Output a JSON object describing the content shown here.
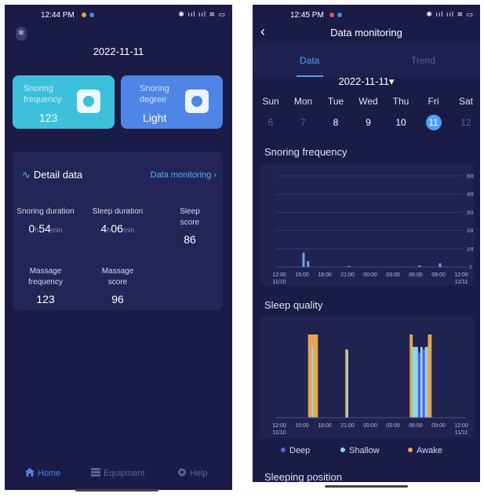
{
  "left_screen": {
    "status_bar": {
      "time": "12:44 PM",
      "icons": "✱ ııl ııl ≋ ▭"
    },
    "date": "2022-11-11",
    "cards": [
      {
        "label": "Snoring frequency",
        "value": "123",
        "color": "#3cc0dc"
      },
      {
        "label": "Snoring degree",
        "value": "Light",
        "color": "#4f85e6"
      }
    ],
    "detail": {
      "title": "Detail data",
      "link": "Data monitoring ›",
      "snoring_duration": {
        "label": "Snoring duration",
        "h": "0",
        "h_unit": "h",
        "m": "54",
        "m_unit": "min"
      },
      "sleep_duration": {
        "label": "Sleep duration",
        "h": "4",
        "h_unit": "h",
        "m": "06",
        "m_unit": "min"
      },
      "sleep_score": {
        "label": "Sleep score",
        "value": "86"
      },
      "massage_frequency": {
        "label": "Massage frequency",
        "value": "123"
      },
      "massage_score": {
        "label": "Massage score",
        "value": "96"
      }
    },
    "tab_bar": {
      "home": "Home",
      "equipment": "Equipment",
      "help": "Help",
      "active_color": "#4f85e6"
    }
  },
  "right_screen": {
    "status_bar": {
      "time": "12:45 PM",
      "icons": "✱ ııl ııl ≋ ▭"
    },
    "nav_title": "Data monitoring",
    "tabs": {
      "data": "Data",
      "trend": "Trend"
    },
    "calendar": {
      "date": "2022-11-11▾",
      "days": [
        {
          "name": "Sun",
          "num": "6",
          "dim": true
        },
        {
          "name": "Mon",
          "num": "7",
          "dim": true
        },
        {
          "name": "Tue",
          "num": "8",
          "dim": false
        },
        {
          "name": "Wed",
          "num": "9",
          "dim": false
        },
        {
          "name": "Thu",
          "num": "10",
          "dim": false
        },
        {
          "name": "Fri",
          "num": "11",
          "dim": false,
          "selected": true
        },
        {
          "name": "Sat",
          "num": "12",
          "dim": true
        }
      ]
    },
    "sections": {
      "snoring_frequency": "Snoring frequency",
      "sleep_quality": "Sleep quality",
      "sleeping_position": "Sleeping position"
    },
    "legend": [
      {
        "label": "Deep",
        "color": "#5b5fe0"
      },
      {
        "label": "Shallow",
        "color": "#8fd8e8"
      },
      {
        "label": "Awake",
        "color": "#e8a452"
      }
    ]
  },
  "chart_data": [
    {
      "type": "bar",
      "title": "Snoring frequency",
      "ylim": [
        0,
        500
      ],
      "yticks": [
        "500",
        "400",
        "300",
        "200",
        "100",
        "0"
      ],
      "xticks": [
        "12:00",
        "15:00",
        "18:00",
        "21:00",
        "00:00",
        "03:00",
        "06:00",
        "09:00",
        "12:00"
      ],
      "xtick_dates": [
        "11/10",
        "",
        "",
        "",
        "",
        "",
        "",
        "",
        "11/11"
      ],
      "x_hours": [
        15.2,
        15.8,
        21.2,
        30.5,
        33.2
      ],
      "values": [
        78,
        32,
        5,
        8,
        20
      ],
      "bar_color": "#6fa0e8",
      "grid": true
    },
    {
      "type": "bar",
      "title": "Sleep quality",
      "xticks": [
        "12:00",
        "15:00",
        "18:00",
        "21:00",
        "00:00",
        "03:00",
        "06:00",
        "09:00",
        "12:00"
      ],
      "xtick_dates": [
        "11/10",
        "",
        "",
        "",
        "",
        "",
        "",
        "",
        "11/11"
      ],
      "segments": [
        {
          "stage": "Awake",
          "start": 15.8,
          "end": 17.1,
          "level": 1.0
        },
        {
          "stage": "Shallow",
          "start": 16.3,
          "end": 16.5,
          "level": 0.85
        },
        {
          "stage": "Awake",
          "start": 20.7,
          "end": 21.1,
          "level": 0.82
        },
        {
          "stage": "Shallow",
          "start": 20.9,
          "end": 21.1,
          "level": 0.8
        },
        {
          "stage": "Awake",
          "start": 29.2,
          "end": 29.6,
          "level": 1.0
        },
        {
          "stage": "Shallow",
          "start": 29.5,
          "end": 30.3,
          "level": 0.85
        },
        {
          "stage": "Deep",
          "start": 30.3,
          "end": 30.6,
          "level": 0.78
        },
        {
          "stage": "Shallow",
          "start": 30.6,
          "end": 30.9,
          "level": 0.85
        },
        {
          "stage": "Deep",
          "start": 30.9,
          "end": 31.2,
          "level": 0.82
        },
        {
          "stage": "Shallow",
          "start": 31.2,
          "end": 31.6,
          "level": 0.85
        },
        {
          "stage": "Awake",
          "start": 31.6,
          "end": 32.1,
          "level": 1.0
        }
      ],
      "legend": [
        "Deep",
        "Shallow",
        "Awake"
      ]
    }
  ]
}
